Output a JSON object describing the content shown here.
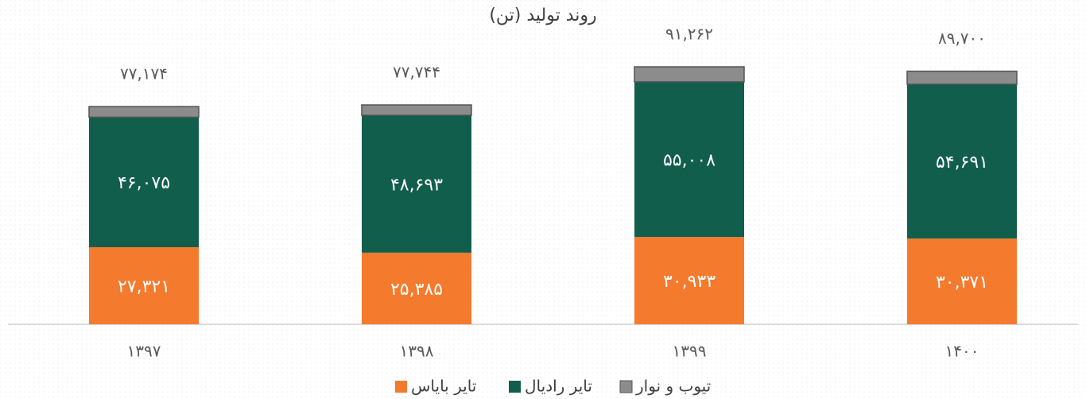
{
  "chart_data": {
    "type": "stacked_bar",
    "title": "روند تولید (تن)",
    "categories": [
      "۱۳۹۷",
      "۱۳۹۸",
      "۱۳۹۹",
      "۱۴۰۰"
    ],
    "series": [
      {
        "name": "تایر بایاس",
        "color": "#f47a2e",
        "values": [
          27321,
          25385,
          30933,
          30371
        ],
        "value_labels": [
          "۲۷,۳۲۱",
          "۲۵,۳۸۵",
          "۳۰,۹۳۳",
          "۳۰,۳۷۱"
        ]
      },
      {
        "name": "تایر رادیال",
        "color": "#115e4c",
        "values": [
          46075,
          48693,
          55008,
          54691
        ],
        "value_labels": [
          "۴۶,۰۷۵",
          "۴۸,۶۹۳",
          "۵۵,۰۰۸",
          "۵۴,۶۹۱"
        ]
      },
      {
        "name": "تیوب و نوار",
        "color": "#8c8c8c",
        "values": [
          3778,
          3666,
          5321,
          4638
        ]
      }
    ],
    "totals": [
      77174,
      77744,
      91262,
      89700
    ],
    "total_labels": [
      "۷۷,۱۷۴",
      "۷۷,۷۴۴",
      "۹۱,۲۶۲",
      "۸۹,۷۰۰"
    ],
    "ylim": [
      0,
      100000
    ],
    "legend": "bottom"
  }
}
